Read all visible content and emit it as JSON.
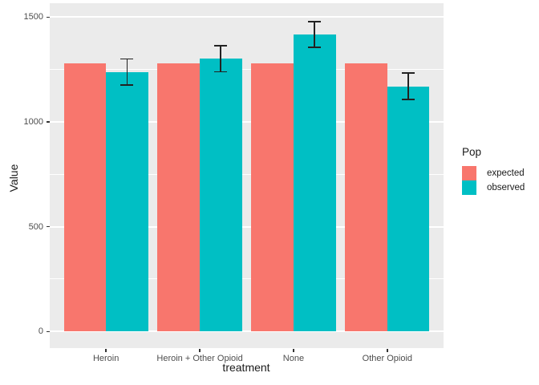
{
  "chart_data": {
    "type": "bar",
    "title": "",
    "xlabel": "treatment",
    "ylabel": "Value",
    "legend_title": "Pop",
    "legend_position": "right",
    "grid": "on",
    "panel_background": "#EBEBEB",
    "grid_color": "#FFFFFF",
    "errorbar_color": "#222222",
    "categories": [
      "Heroin",
      "Heroin + Other Opioid",
      "None",
      "Other Opioid"
    ],
    "series": [
      {
        "name": "expected",
        "color": "#F8766D",
        "values": [
          1278,
          1278,
          1278,
          1278
        ]
      },
      {
        "name": "observed",
        "color": "#00BFC4",
        "values": [
          1238,
          1301,
          1417,
          1170
        ],
        "error_low": [
          1176,
          1239,
          1355,
          1108
        ],
        "error_high": [
          1300,
          1363,
          1479,
          1232
        ]
      }
    ],
    "ylim": [
      0,
      1500
    ],
    "yticks": [
      0,
      500,
      1000,
      1500
    ],
    "yticks_minor": [
      250,
      750,
      1250
    ]
  }
}
